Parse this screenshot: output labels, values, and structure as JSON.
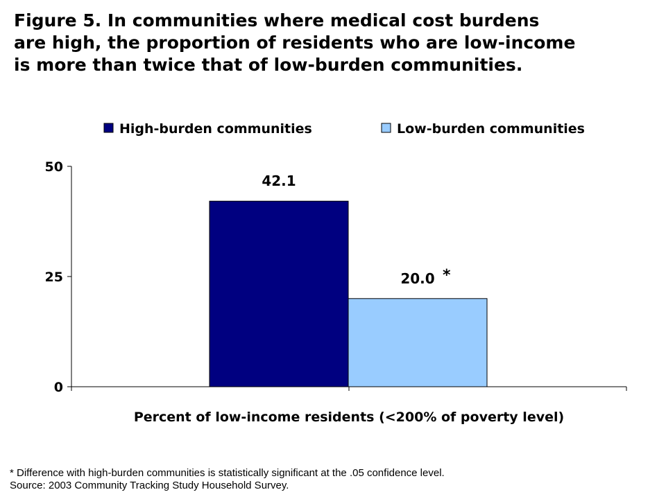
{
  "title_lines": [
    "Figure 5. In communities where medical cost burdens",
    "are high, the proportion of residents who are low-income",
    "is more than twice that of low-burden communities."
  ],
  "footnotes": [
    "* Difference with high-burden communities is statistically significant at the .05 confidence level.",
    "Source: 2003 Community Tracking Study Household Survey."
  ],
  "chart_data": {
    "type": "bar",
    "categories": [
      "Percent of low-income residents (<200% of poverty level)"
    ],
    "series": [
      {
        "name": "High-burden communities",
        "values": [
          42.1
        ],
        "color": "#000080",
        "label": "42.1",
        "marker": ""
      },
      {
        "name": "Low-burden communities",
        "values": [
          20.0
        ],
        "color": "#99CCFF",
        "label": "20.0",
        "marker": "*"
      }
    ],
    "xlabel": "Percent of low-income residents (<200% of poverty level)",
    "ylabel": "",
    "ylim": [
      0,
      50
    ],
    "yticks": [
      0,
      25,
      50
    ],
    "grid": false,
    "legend_position": "top"
  }
}
